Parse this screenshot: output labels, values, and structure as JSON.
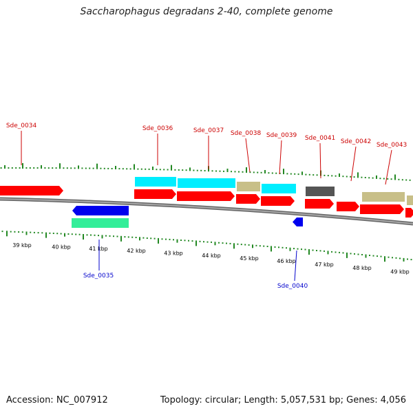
{
  "title": "Saccharophagus degradans 2-40, complete genome",
  "footer": {
    "accession": "Accession: NC_007912",
    "summary": "Topology: circular; Length: 5,057,531 bp; Genes: 4,056"
  },
  "colors": {
    "forward_gene": "#ff0000",
    "reverse_gene": "#0000ee",
    "forward_label": "#cc0000",
    "reverse_label": "#0000cc",
    "cds_cyan": "#00eeff",
    "cds_khaki": "#c8bf88",
    "cds_gray": "#555555",
    "cds_teal": "#33ee99",
    "tick": "#228822",
    "backbone": "#808080"
  },
  "scale_labels": [
    "39 kbp",
    "40 kbp",
    "41 kbp",
    "42 kbp",
    "43 kbp",
    "44 kbp",
    "45 kbp",
    "46 kbp",
    "47 kbp",
    "48 kbp",
    "49 kbp"
  ],
  "gene_labels": [
    {
      "text": "Sde_0034",
      "strand": "forward"
    },
    {
      "text": "Sde_0036",
      "strand": "forward"
    },
    {
      "text": "Sde_0037",
      "strand": "forward"
    },
    {
      "text": "Sde_0038",
      "strand": "forward"
    },
    {
      "text": "Sde_0039",
      "strand": "forward"
    },
    {
      "text": "Sde_0041",
      "strand": "forward"
    },
    {
      "text": "Sde_0042",
      "strand": "forward"
    },
    {
      "text": "Sde_0043",
      "strand": "forward"
    },
    {
      "text": "Sde_0035",
      "strand": "reverse"
    },
    {
      "text": "Sde_0040",
      "strand": "reverse"
    }
  ]
}
